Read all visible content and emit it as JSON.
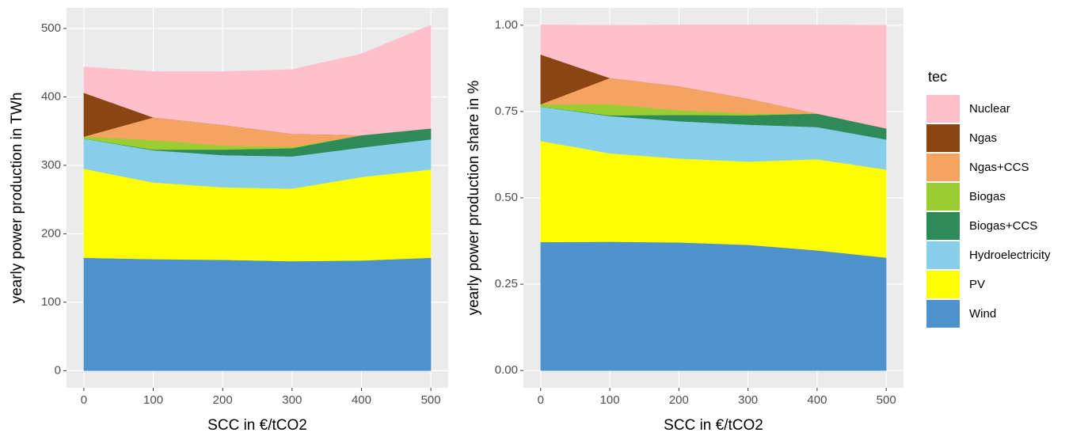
{
  "chart_data": [
    {
      "type": "area",
      "stacked": true,
      "xlabel": "SCC in €/tCO2",
      "ylabel": "yearly power production in TWh",
      "legend_title": "tec",
      "x": [
        0,
        100,
        200,
        300,
        400,
        500
      ],
      "xlim": [
        -25,
        525
      ],
      "xticks": [
        0,
        100,
        200,
        300,
        400,
        500
      ],
      "ylim": [
        -25,
        530
      ],
      "yticks": [
        0,
        100,
        200,
        300,
        400,
        500
      ],
      "grid": true,
      "series": [
        {
          "name": "Wind",
          "color": "#4d92cd",
          "values": [
            165,
            163,
            162,
            160,
            161,
            165
          ]
        },
        {
          "name": "PV",
          "color": "#ffff00",
          "values": [
            130,
            112,
            106,
            106,
            122,
            129
          ]
        },
        {
          "name": "Hydroelectricity",
          "color": "#87ceeb",
          "values": [
            44,
            47,
            47,
            47,
            43,
            44
          ]
        },
        {
          "name": "Biogas+CCS",
          "color": "#2e8b57",
          "values": [
            0,
            1,
            8,
            12,
            18,
            16
          ]
        },
        {
          "name": "Biogas",
          "color": "#9acd32",
          "values": [
            3,
            14,
            6,
            2,
            0,
            0
          ]
        },
        {
          "name": "Ngas+CCS",
          "color": "#f4a460",
          "values": [
            0,
            33,
            30,
            19,
            0,
            0
          ]
        },
        {
          "name": "Ngas",
          "color": "#8b4513",
          "values": [
            64,
            0,
            0,
            0,
            0,
            0
          ]
        },
        {
          "name": "Nuclear",
          "color": "#ffc0cb",
          "values": [
            38,
            67,
            78,
            94,
            119,
            151
          ]
        }
      ]
    },
    {
      "type": "area",
      "stacked": true,
      "xlabel": "SCC in €/tCO2",
      "ylabel": "yearly power production share in %",
      "x": [
        0,
        100,
        200,
        300,
        400,
        500
      ],
      "xlim": [
        -25,
        525
      ],
      "xticks": [
        0,
        100,
        200,
        300,
        400,
        500
      ],
      "ylim": [
        -0.05,
        1.05
      ],
      "yticks": [
        {
          "value": 0,
          "label": "0.00"
        },
        0.25,
        {
          "value": 0.5,
          "label": "0.50"
        },
        0.75,
        {
          "value": 1,
          "label": "1.00"
        }
      ],
      "grid": true,
      "series": [
        {
          "name": "Wind",
          "color": "#4d92cd",
          "values": [
            0.372,
            0.373,
            0.371,
            0.364,
            0.348,
            0.327
          ]
        },
        {
          "name": "PV",
          "color": "#ffff00",
          "values": [
            0.293,
            0.256,
            0.243,
            0.241,
            0.264,
            0.255
          ]
        },
        {
          "name": "Hydroelectricity",
          "color": "#87ceeb",
          "values": [
            0.099,
            0.108,
            0.108,
            0.107,
            0.093,
            0.087
          ]
        },
        {
          "name": "Biogas+CCS",
          "color": "#2e8b57",
          "values": [
            0,
            0.002,
            0.018,
            0.027,
            0.039,
            0.032
          ]
        },
        {
          "name": "Biogas",
          "color": "#9acd32",
          "values": [
            0.007,
            0.032,
            0.014,
            0.005,
            0,
            0
          ]
        },
        {
          "name": "Ngas+CCS",
          "color": "#f4a460",
          "values": [
            0,
            0.076,
            0.069,
            0.043,
            0,
            0
          ]
        },
        {
          "name": "Ngas",
          "color": "#8b4513",
          "values": [
            0.144,
            0,
            0,
            0,
            0,
            0
          ]
        },
        {
          "name": "Nuclear",
          "color": "#ffc0cb",
          "values": [
            0.086,
            0.153,
            0.178,
            0.214,
            0.257,
            0.299
          ]
        }
      ]
    }
  ]
}
